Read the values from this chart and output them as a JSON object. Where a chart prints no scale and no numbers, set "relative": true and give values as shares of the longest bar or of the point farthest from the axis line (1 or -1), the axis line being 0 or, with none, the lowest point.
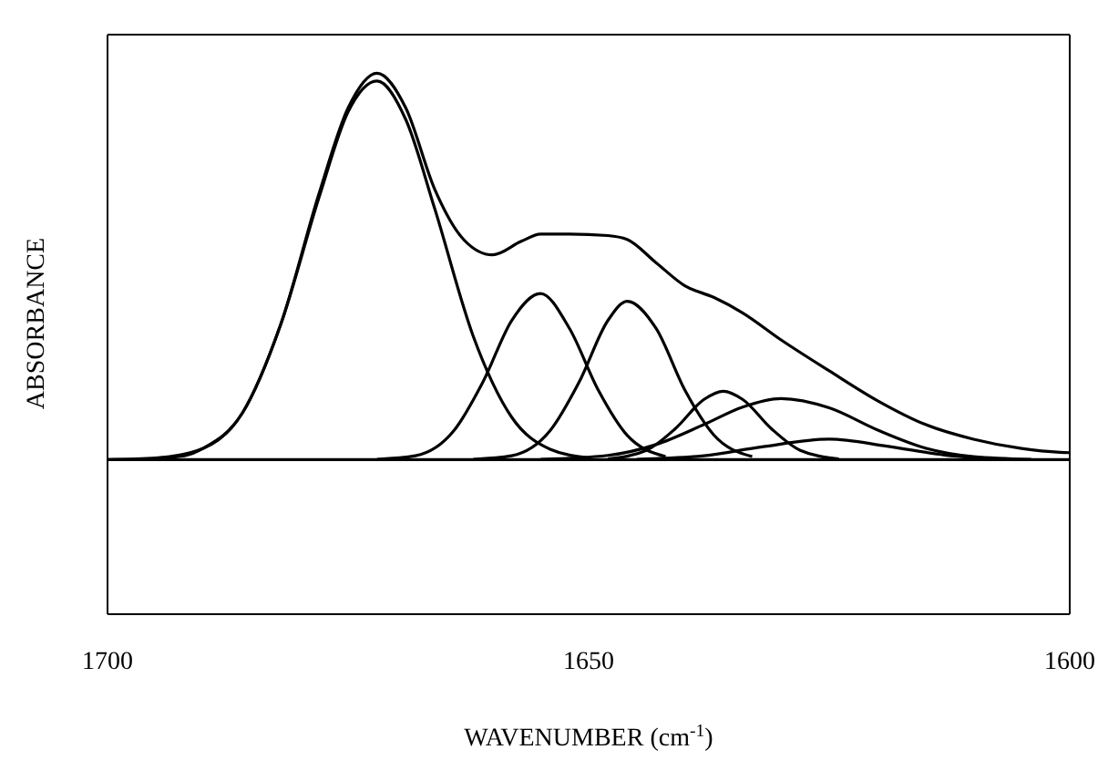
{
  "chart_data": {
    "type": "line",
    "relative": true,
    "xlabel": "WAVENUMBER (cm$^{-1}$)",
    "ylabel": "ABSORBANCE",
    "xlim": [
      1700,
      1600
    ],
    "xticks": [
      1700,
      1650,
      1600
    ],
    "marker": "none",
    "line_style": "solid",
    "ref_lines": [
      {
        "axis": "y",
        "value": 0,
        "color": "#000000"
      }
    ],
    "series": [
      {
        "color": "#000000",
        "x": [
          1700,
          1695,
          1692,
          1690,
          1686,
          1682,
          1678,
          1675,
          1672,
          1669,
          1666,
          1663,
          1660,
          1657,
          1655,
          1652,
          1648,
          1646,
          1643,
          1640,
          1637,
          1634,
          1630,
          1625,
          1620,
          1615,
          1610,
          1605,
          1601,
          1600
        ],
        "values": [
          0,
          0.004,
          0.01,
          0.03,
          0.12,
          0.35,
          0.69,
          0.91,
          1.0,
          0.91,
          0.7,
          0.57,
          0.53,
          0.565,
          0.584,
          0.584,
          0.58,
          0.57,
          0.51,
          0.45,
          0.42,
          0.38,
          0.31,
          0.23,
          0.153,
          0.091,
          0.053,
          0.029,
          0.019,
          0.018
        ]
      },
      {
        "color": "#000000",
        "x": [
          1695,
          1690,
          1686,
          1682,
          1678,
          1675,
          1672,
          1669,
          1666,
          1662,
          1658,
          1654,
          1650
        ],
        "values": [
          0.004,
          0.03,
          0.12,
          0.35,
          0.68,
          0.9,
          0.98,
          0.88,
          0.65,
          0.32,
          0.11,
          0.027,
          0.005
        ]
      },
      {
        "color": "#000000",
        "x": [
          1672,
          1668,
          1664,
          1661,
          1658,
          1655,
          1652,
          1649,
          1646,
          1642
        ],
        "values": [
          0.001,
          0.01,
          0.075,
          0.2,
          0.36,
          0.43,
          0.34,
          0.18,
          0.063,
          0.008
        ]
      },
      {
        "color": "#000000",
        "x": [
          1662,
          1658,
          1654,
          1651,
          1648,
          1646,
          1643,
          1640,
          1637,
          1633
        ],
        "values": [
          0.001,
          0.01,
          0.075,
          0.2,
          0.36,
          0.41,
          0.34,
          0.18,
          0.064,
          0.008
        ]
      },
      {
        "color": "#000000",
        "x": [
          1648,
          1644,
          1641,
          1638,
          1636,
          1634,
          1631,
          1628,
          1624
        ],
        "values": [
          0.002,
          0.024,
          0.08,
          0.156,
          0.177,
          0.156,
          0.08,
          0.024,
          0.002
        ]
      },
      {
        "color": "#000000",
        "x": [
          1655,
          1648,
          1643,
          1638,
          1634,
          1630,
          1625,
          1620,
          1615,
          1610,
          1604
        ],
        "values": [
          0.001,
          0.011,
          0.039,
          0.091,
          0.136,
          0.158,
          0.134,
          0.077,
          0.03,
          0.008,
          0.001
        ]
      },
      {
        "color": "#000000",
        "x": [
          1645,
          1638,
          1632,
          1625,
          1619,
          1613,
          1606
        ],
        "values": [
          0.001,
          0.01,
          0.033,
          0.053,
          0.035,
          0.012,
          0.001
        ]
      }
    ]
  }
}
